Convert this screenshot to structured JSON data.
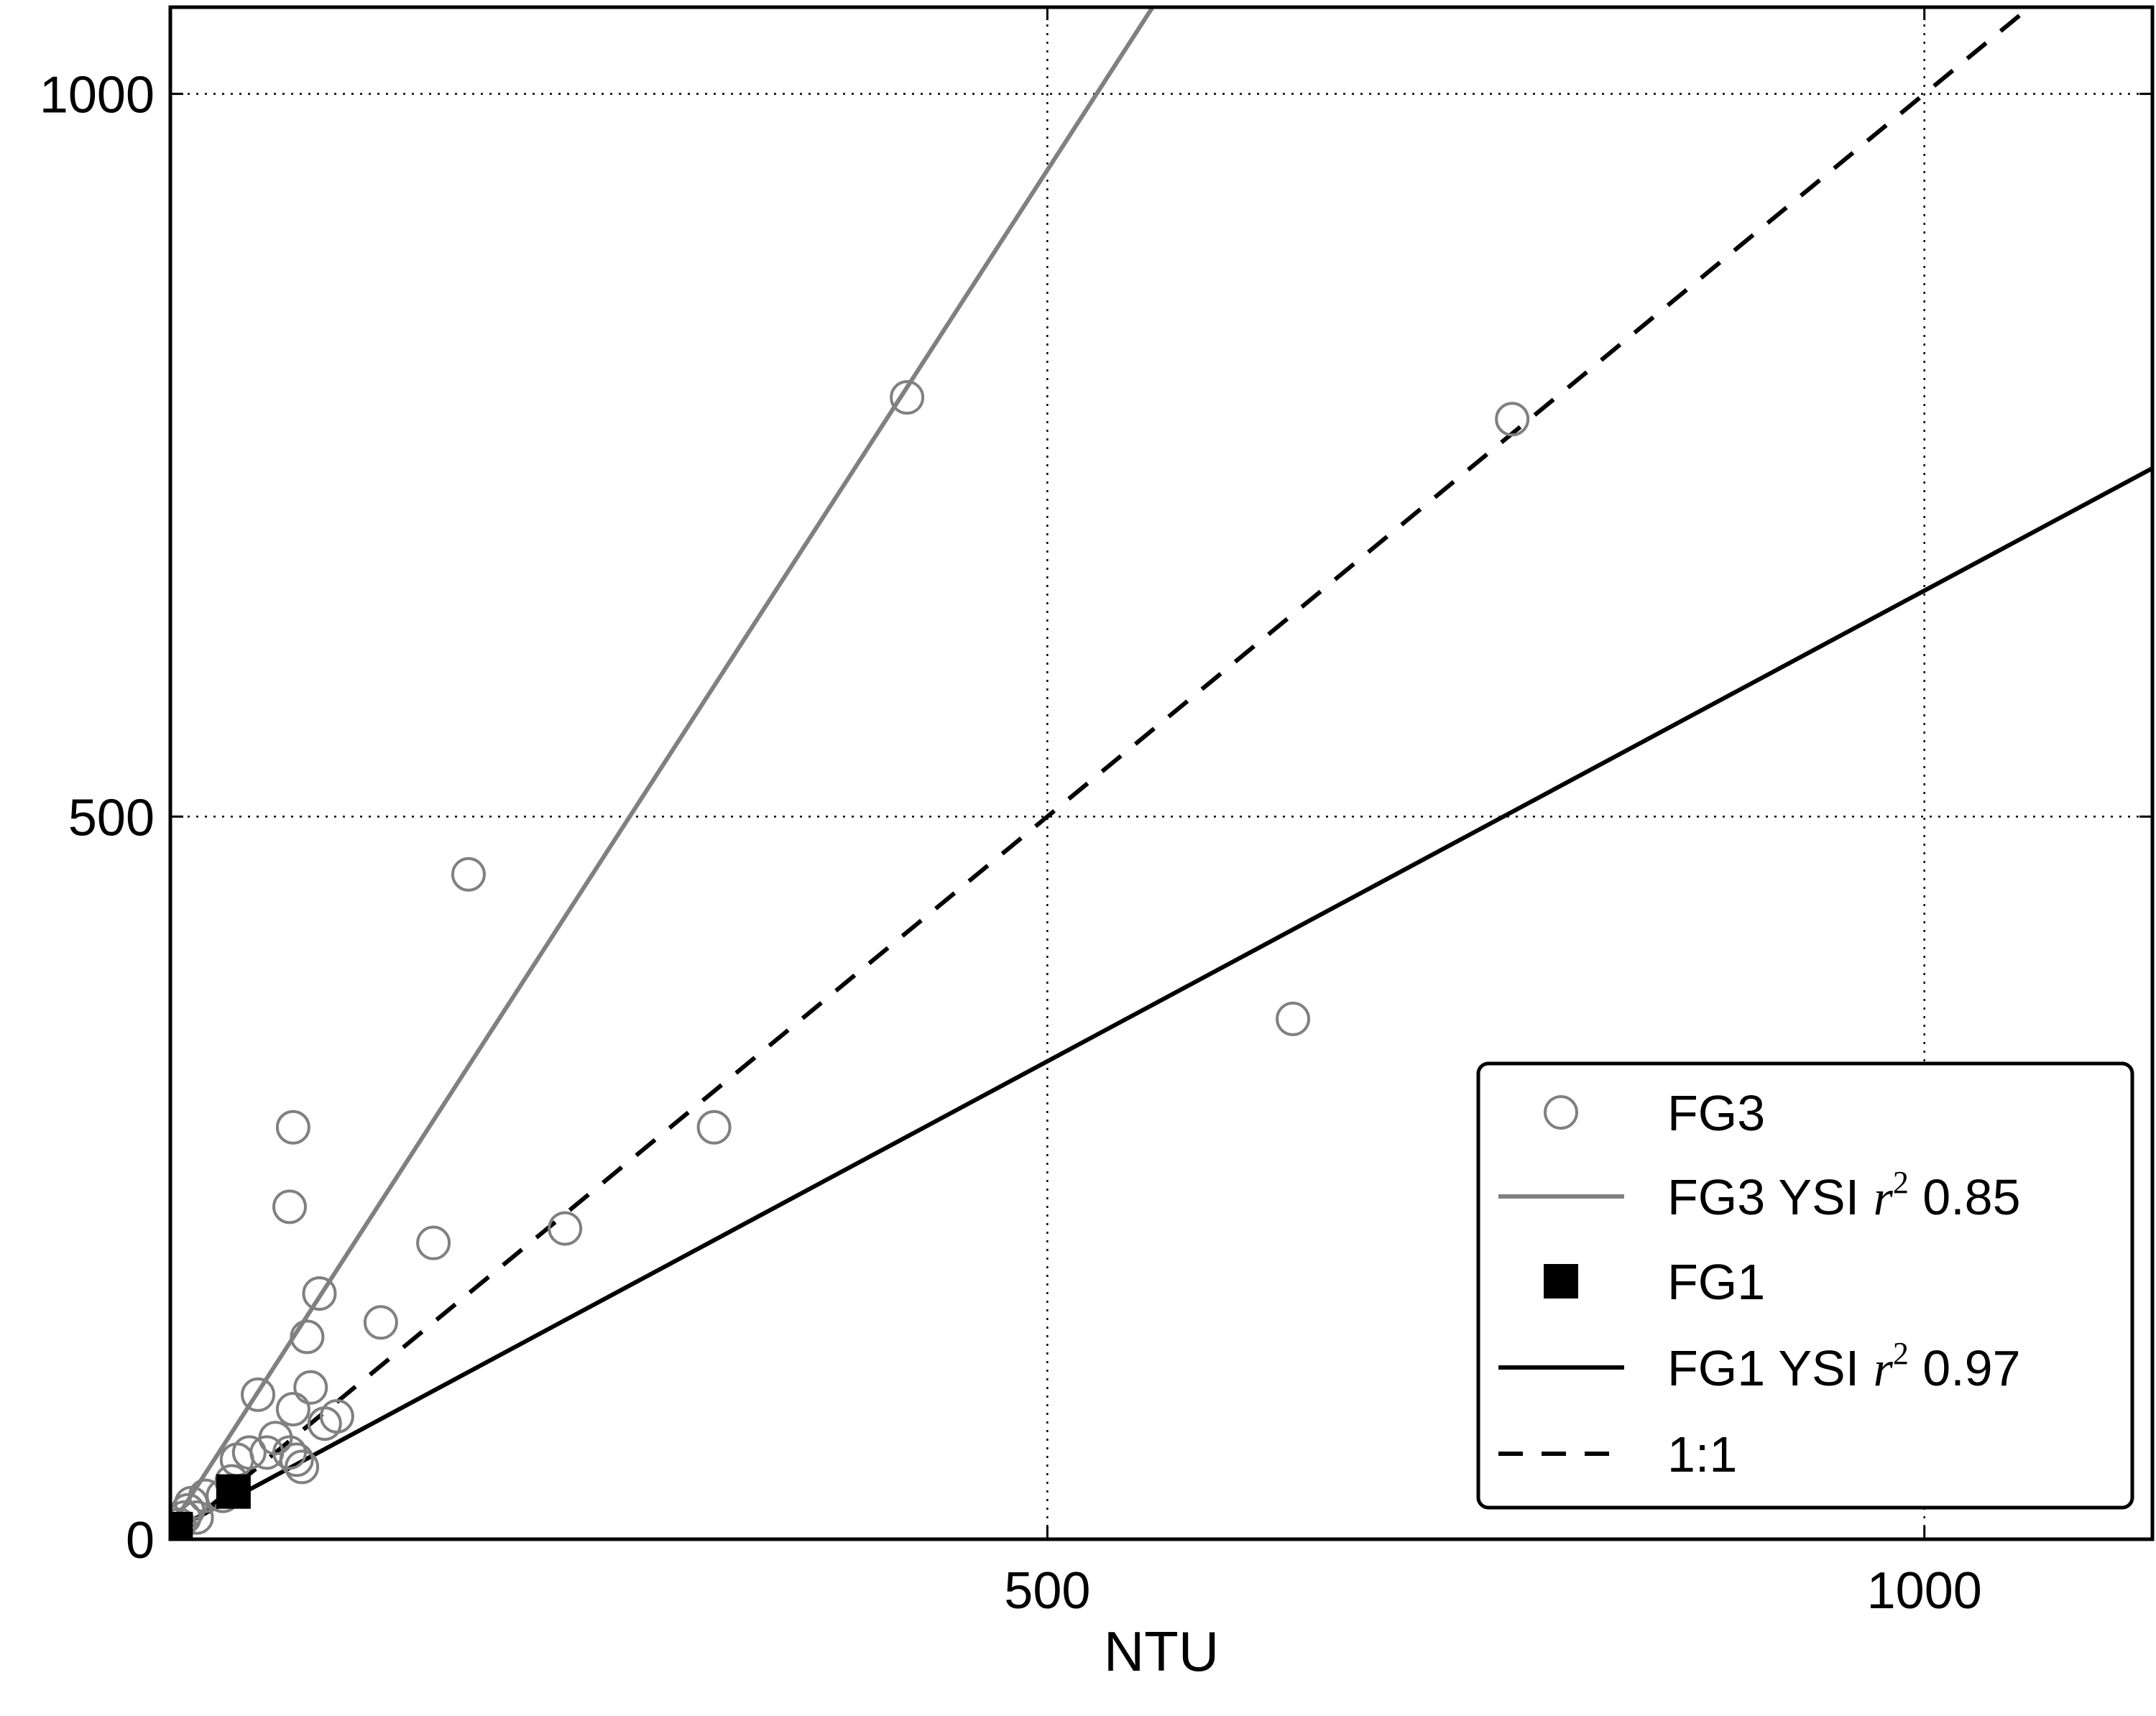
{
  "chart_data": {
    "type": "scatter",
    "xlabel": "NTU",
    "ylabel": "",
    "xlim": [
      0,
      1130
    ],
    "ylim": [
      0,
      1060
    ],
    "x_ticks": [
      0,
      500,
      1000
    ],
    "x_tick_labels": [
      "500",
      "1000"
    ],
    "y_ticks": [
      0,
      500,
      1000
    ],
    "y_tick_labels": [
      "0",
      "500",
      "1000"
    ],
    "grid": true,
    "legend_position": "bottom-right",
    "series": [
      {
        "name": "FG3",
        "kind": "scatter",
        "marker": "open-circle",
        "color": "#808080",
        "points": [
          [
            2,
            5
          ],
          [
            5,
            10
          ],
          [
            8,
            15
          ],
          [
            10,
            20
          ],
          [
            12,
            25
          ],
          [
            15,
            15
          ],
          [
            20,
            30
          ],
          [
            30,
            30
          ],
          [
            35,
            40
          ],
          [
            38,
            55
          ],
          [
            45,
            60
          ],
          [
            50,
            100
          ],
          [
            55,
            60
          ],
          [
            60,
            70
          ],
          [
            68,
            60
          ],
          [
            70,
            90
          ],
          [
            72,
            55
          ],
          [
            75,
            50
          ],
          [
            78,
            140
          ],
          [
            80,
            105
          ],
          [
            85,
            170
          ],
          [
            88,
            80
          ],
          [
            95,
            85
          ],
          [
            120,
            150
          ],
          [
            150,
            205
          ],
          [
            170,
            460
          ],
          [
            225,
            215
          ],
          [
            310,
            285
          ],
          [
            420,
            790
          ],
          [
            640,
            360
          ],
          [
            765,
            775
          ],
          [
            68,
            230
          ],
          [
            70,
            285
          ]
        ]
      },
      {
        "name": "FG3 YSI r² 0.85",
        "kind": "line",
        "color": "#808080",
        "x": [
          0,
          560
        ],
        "y": [
          8,
          1060
        ]
      },
      {
        "name": "FG1",
        "kind": "scatter",
        "marker": "filled-square",
        "color": "#000000",
        "points": [
          [
            3,
            7
          ],
          [
            36,
            33
          ]
        ]
      },
      {
        "name": "FG1 YSI r² 0.97",
        "kind": "line",
        "color": "#000000",
        "x": [
          0,
          1130
        ],
        "y": [
          5,
          741
        ]
      },
      {
        "name": "1:1",
        "kind": "dashed-line",
        "color": "#000000",
        "x": [
          0,
          1060
        ],
        "y": [
          0,
          1060
        ]
      }
    ]
  },
  "legend": {
    "items": [
      {
        "prefix": "FG3",
        "math": "",
        "suffix": ""
      },
      {
        "prefix": "FG3 YSI ",
        "math": "r",
        "sup": "2",
        "suffix": " 0.85"
      },
      {
        "prefix": "FG1",
        "math": "",
        "suffix": ""
      },
      {
        "prefix": "FG1 YSI ",
        "math": "r",
        "sup": "2",
        "suffix": " 0.97"
      },
      {
        "prefix": "1:1",
        "math": "",
        "suffix": ""
      }
    ]
  }
}
